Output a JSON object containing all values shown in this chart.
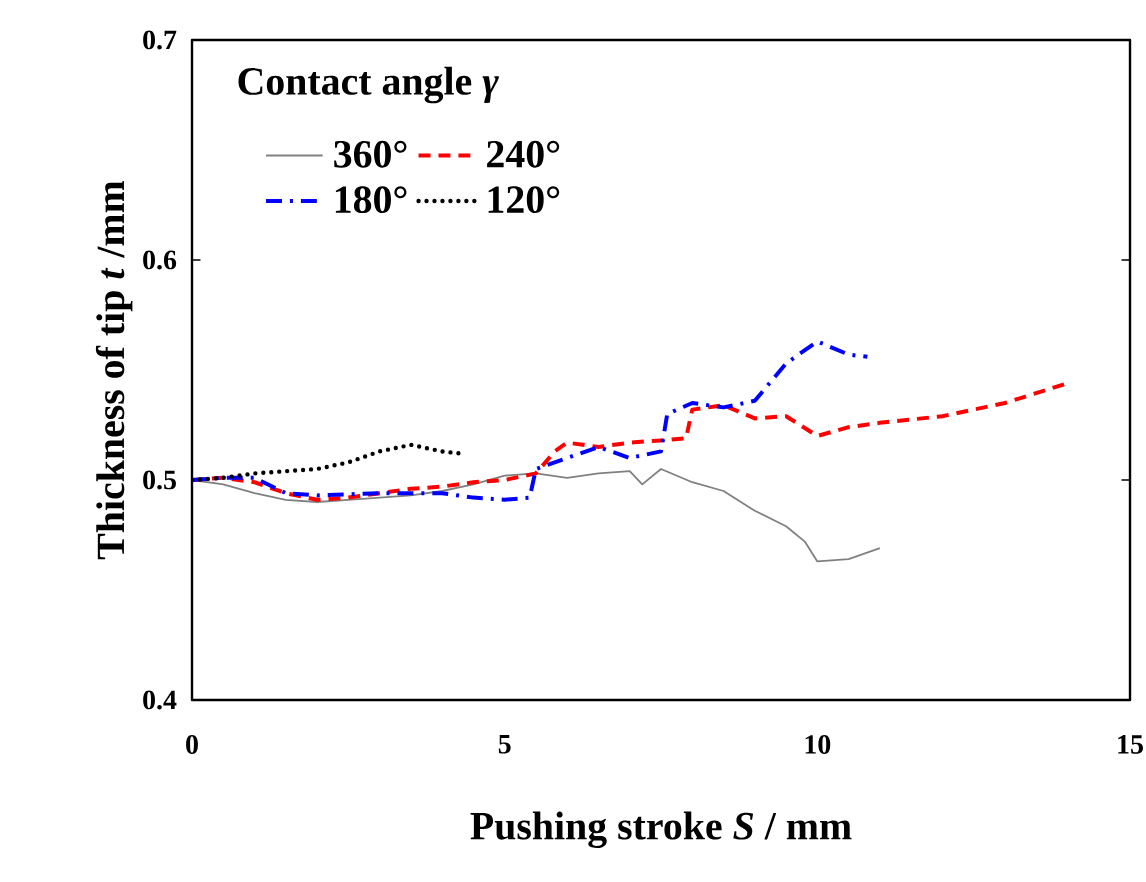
{
  "chart_data": {
    "type": "line",
    "xlabel": "Pushing stroke *S* / mm",
    "ylabel": "Thickness of tip *t* /mm",
    "legend_title": "Contact angle *γ*",
    "xlim": [
      0,
      15
    ],
    "ylim": [
      0.4,
      0.7
    ],
    "xticks": [
      0,
      5,
      10,
      15
    ],
    "yticks": [
      0.4,
      0.5,
      0.6,
      0.7
    ],
    "legend": "top left",
    "grid": false,
    "series": [
      {
        "name": "360°",
        "color": "#808080",
        "line_style": "solid",
        "x": [
          0,
          0.5,
          1,
          1.5,
          2,
          2.5,
          3,
          3.5,
          4,
          4.5,
          5,
          5.5,
          6,
          6.5,
          7,
          7.2,
          7.5,
          8,
          8.5,
          9,
          9.5,
          9.8,
          10,
          10.5,
          11
        ],
        "values": [
          0.5,
          0.498,
          0.494,
          0.491,
          0.49,
          0.491,
          0.492,
          0.493,
          0.495,
          0.498,
          0.502,
          0.503,
          0.501,
          0.503,
          0.504,
          0.498,
          0.505,
          0.499,
          0.495,
          0.486,
          0.479,
          0.472,
          0.463,
          0.464,
          0.469
        ]
      },
      {
        "name": "240°",
        "color": "#ff0000",
        "line_style": "dashed",
        "x": [
          0,
          0.5,
          1,
          1.5,
          2,
          2.5,
          3,
          3.5,
          4,
          4.5,
          5,
          5.5,
          5.8,
          6,
          6.5,
          7,
          7.5,
          7.9,
          8,
          8.5,
          9,
          9.5,
          10,
          10.5,
          11,
          12,
          13,
          14
        ],
        "values": [
          0.5,
          0.501,
          0.499,
          0.494,
          0.491,
          0.492,
          0.494,
          0.496,
          0.497,
          0.499,
          0.5,
          0.503,
          0.513,
          0.517,
          0.515,
          0.517,
          0.518,
          0.519,
          0.532,
          0.534,
          0.528,
          0.529,
          0.52,
          0.524,
          0.526,
          0.529,
          0.535,
          0.544
        ]
      },
      {
        "name": "180°",
        "color": "#0000ff",
        "line_style": "dashdot",
        "x": [
          0,
          0.5,
          1,
          1.5,
          2,
          3,
          4,
          4.5,
          5,
          5.4,
          5.5,
          6,
          6.5,
          7,
          7.5,
          7.6,
          8,
          8.5,
          9,
          9.5,
          10,
          10.5,
          10.8
        ],
        "values": [
          0.5,
          0.501,
          0.501,
          0.494,
          0.493,
          0.494,
          0.494,
          0.492,
          0.491,
          0.492,
          0.505,
          0.51,
          0.515,
          0.51,
          0.513,
          0.53,
          0.535,
          0.533,
          0.536,
          0.553,
          0.563,
          0.557,
          0.556
        ]
      },
      {
        "name": "120°",
        "color": "#000000",
        "line_style": "dotted",
        "x": [
          0,
          0.5,
          1,
          1.5,
          2,
          2.5,
          3,
          3.5,
          4,
          4.3
        ],
        "values": [
          0.5,
          0.501,
          0.503,
          0.504,
          0.505,
          0.508,
          0.513,
          0.516,
          0.513,
          0.512
        ]
      }
    ]
  }
}
